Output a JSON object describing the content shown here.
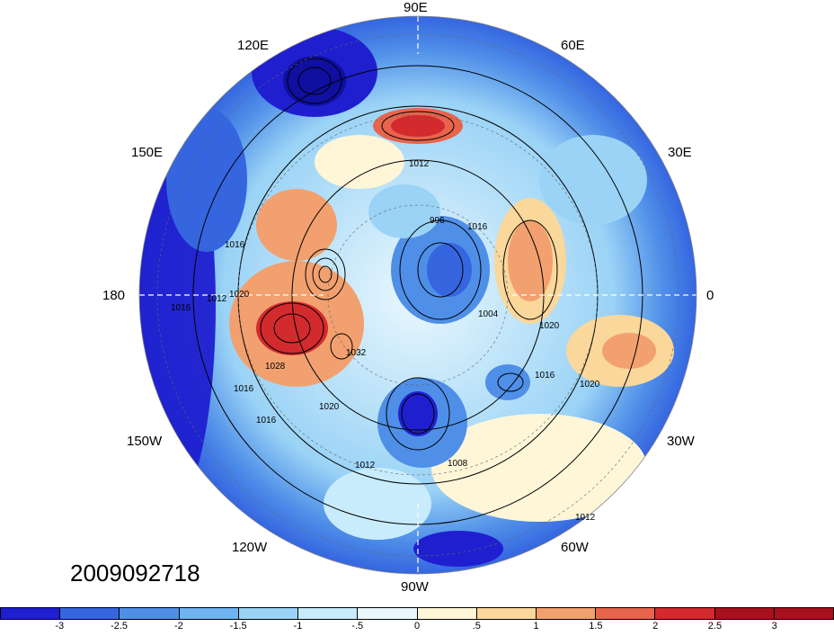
{
  "timestamp": "2009092718",
  "longitude_labels": {
    "e90": "90E",
    "e60": "60E",
    "e30": "30E",
    "zero": "0",
    "w30": "30W",
    "w60": "60W",
    "w90": "90W",
    "w120": "120W",
    "w150": "150W",
    "deg180": "180",
    "e150": "150E",
    "e120": "120E"
  },
  "isobar_labels": [
    "1012",
    "996",
    "1016",
    "1016",
    "1020",
    "1020",
    "1020",
    "1028",
    "1016",
    "1016",
    "1020",
    "1016",
    "1012",
    "1012",
    "1008",
    "1016",
    "1012",
    "1004",
    "1032"
  ],
  "colorbar": {
    "ticks": [
      "-3",
      "-2.5",
      "-2",
      "-1.5",
      "-1",
      "-.5",
      "0",
      ".5",
      "1",
      "1.5",
      "2",
      "2.5",
      "3"
    ],
    "colors": [
      "#1f1fcf",
      "#3566e0",
      "#4f8fe8",
      "#6fb3f0",
      "#9ad3f6",
      "#c8ecfb",
      "#eaf8fd",
      "#fff6d8",
      "#fad79b",
      "#f2a06f",
      "#e8644c",
      "#d32a2e",
      "#a8101e",
      "#a8101e"
    ]
  }
}
